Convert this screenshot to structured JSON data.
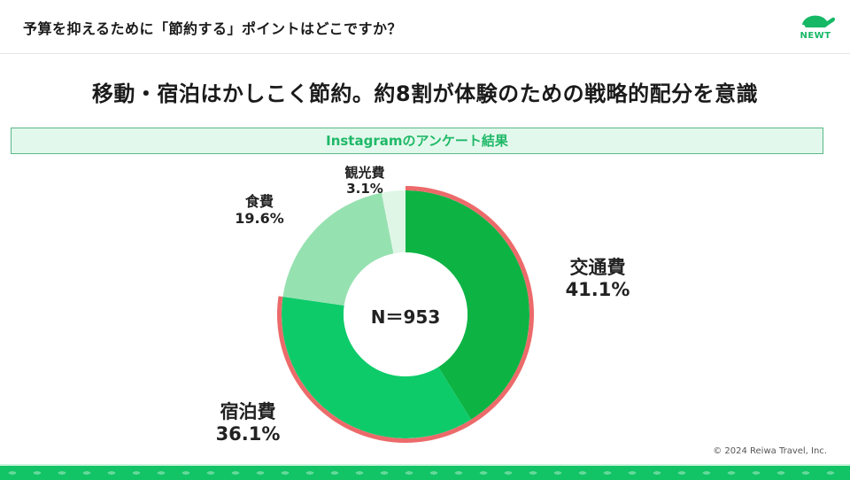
{
  "header": {
    "title": "予算を抑えるために「節約する」ポイントはどこですか？",
    "logo_text": "NEWT",
    "logo_icon": "turtle-icon"
  },
  "headline": "移動・宿泊はかしこく節約。約8割が体験のための戦略的配分を意識",
  "banner": "Instagramのアンケート結果",
  "center_label": "N＝953",
  "labels": {
    "transport": {
      "name": "交通費",
      "pct": "41.1%"
    },
    "lodging": {
      "name": "宿泊費",
      "pct": "36.1%"
    },
    "food": {
      "name": "食費",
      "pct": "19.6%"
    },
    "sightseeing": {
      "name": "観光費",
      "pct": "3.1%"
    }
  },
  "footer": {
    "copyright": "© 2024 Reiwa Travel, Inc."
  },
  "colors": {
    "transport": "#0db444",
    "lodging": "#0ecb6a",
    "food": "#96e1b0",
    "sightseeing": "#dff6e6",
    "highlight_outline": "#ec6a6a",
    "brand_green": "#12c466"
  },
  "chart_data": {
    "type": "pie",
    "subtype": "donut",
    "title": "予算を抑えるために「節約する」ポイントはどこですか？",
    "subtitle": "Instagramのアンケート結果",
    "categories": [
      "交通費",
      "宿泊費",
      "食費",
      "観光費"
    ],
    "values": [
      41.1,
      36.1,
      19.6,
      3.1
    ],
    "unit": "%",
    "sample_size": "N＝953",
    "start_angle": "top (12 o'clock), clockwise",
    "highlighted": [
      "交通費",
      "宿泊費"
    ],
    "highlight_note": "Red outline around 交通費 + 宿泊費 (約8割)",
    "legend": "none (direct labels)"
  }
}
